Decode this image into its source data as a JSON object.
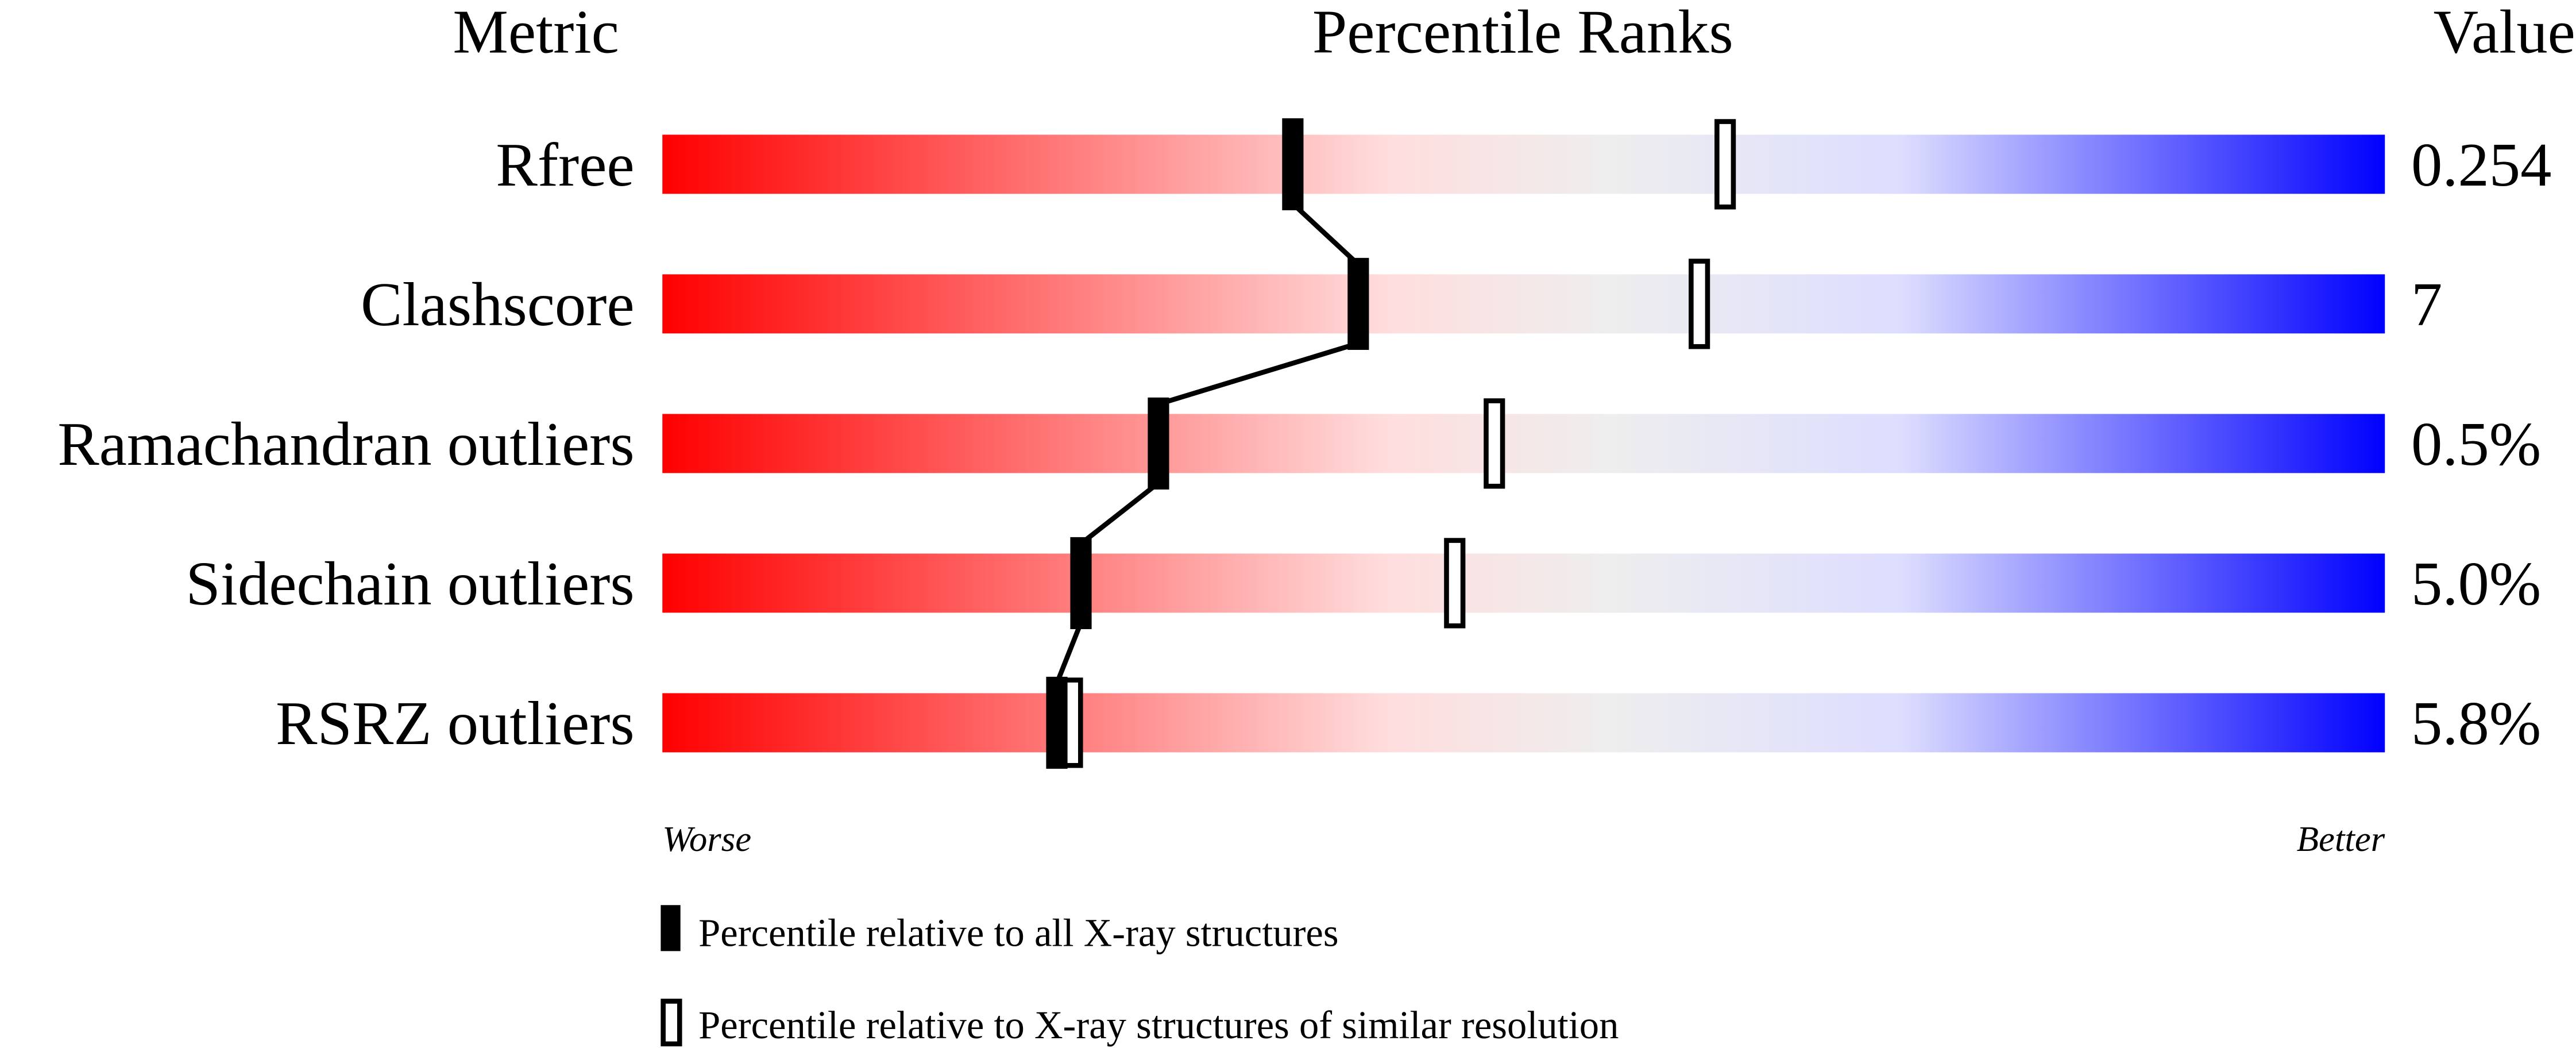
{
  "chart_data": {
    "type": "percentile-slider",
    "headers": {
      "metric": "Metric",
      "ranks": "Percentile Ranks",
      "value": "Value"
    },
    "xlim": [
      0,
      100
    ],
    "axis_labels": {
      "left": "Worse",
      "right": "Better"
    },
    "rows": [
      {
        "metric": "Rfree",
        "value": "0.254",
        "percentile_all": 36.6,
        "percentile_similar": 61.7
      },
      {
        "metric": "Clashscore",
        "value": "7",
        "percentile_all": 40.4,
        "percentile_similar": 60.2
      },
      {
        "metric": "Ramachandran outliers",
        "value": "0.5%",
        "percentile_all": 28.8,
        "percentile_similar": 48.3
      },
      {
        "metric": "Sidechain outliers",
        "value": "5.0%",
        "percentile_all": 24.3,
        "percentile_similar": 46.0
      },
      {
        "metric": "RSRZ outliers",
        "value": "5.8%",
        "percentile_all": 22.9,
        "percentile_similar": 23.8
      }
    ],
    "legend": [
      {
        "marker": "filled",
        "label": "Percentile relative to all X-ray structures"
      },
      {
        "marker": "open",
        "label": "Percentile relative to X-ray structures of similar resolution"
      }
    ],
    "colors": {
      "worse": "#ff0000",
      "mid_low": "#ffdddd",
      "neutral": "#eeeeee",
      "mid_high": "#ddddff",
      "better": "#0000ff"
    }
  }
}
